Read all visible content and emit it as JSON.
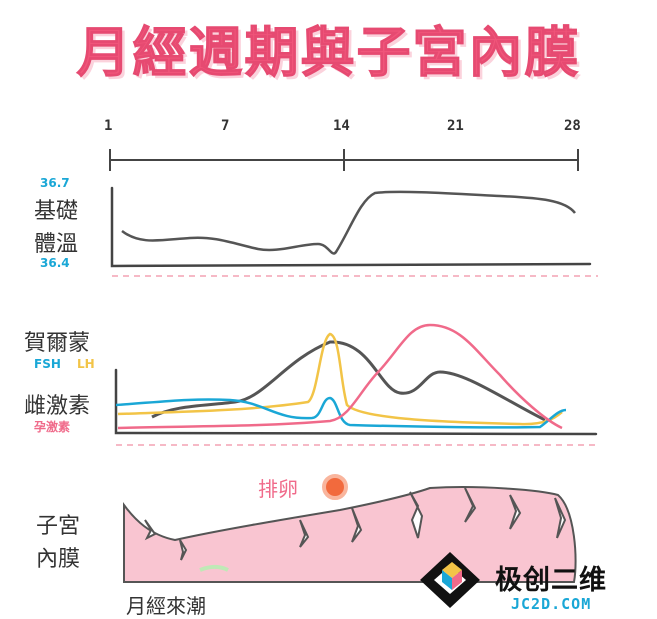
{
  "title": "月經週期與子宮內膜",
  "timeline": {
    "ticks": [
      "1",
      "7",
      "14",
      "21",
      "28"
    ]
  },
  "bbt": {
    "label_line1": "基礎",
    "label_line2": "體溫",
    "high_value": "36.7",
    "low_value": "36.4"
  },
  "hormones": {
    "label_line1": "賀爾蒙",
    "fsh": "FSH",
    "lh": "LH",
    "label_line2": "雌激素",
    "progesterone": "孕激素"
  },
  "ovulation": {
    "label": "排卵"
  },
  "endometrium": {
    "label_line1": "子宮",
    "label_line2": "內膜",
    "menstruation": "月經來潮"
  },
  "watermark": {
    "brand": "极创二维",
    "domain": "JC2D.COM"
  },
  "colors": {
    "title": "#f0557a",
    "fsh": "#1aa7d6",
    "lh": "#f2c447",
    "estrogen": "#555555",
    "progesterone": "#f06a8a",
    "endometrium_fill": "#f9c5d1",
    "ovum": "#f26a3d"
  }
}
